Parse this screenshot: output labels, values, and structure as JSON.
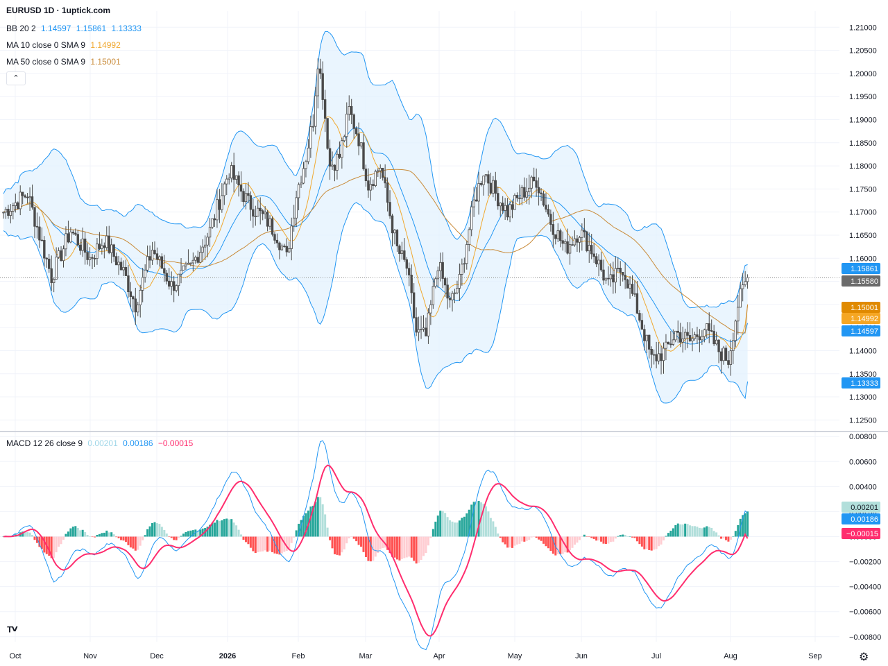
{
  "header": {
    "title": "EURUSD 1D · 1uptick.com"
  },
  "legend": {
    "bb": {
      "label": "BB 20 2",
      "basis": "1.14597",
      "upper": "1.15861",
      "lower": "1.13333"
    },
    "ma10": {
      "label": "MA 10 close 0 SMA 9",
      "value": "1.14992"
    },
    "ma50": {
      "label": "MA 50 close 0 SMA 9",
      "value": "1.15001"
    },
    "macd": {
      "label": "MACD 12 26 close 9",
      "hist": "0.00201",
      "macd": "0.00186",
      "signal": "−0.00015"
    }
  },
  "colors": {
    "up": "#ffffff",
    "down": "#4a4a4a",
    "bb": "#2196f3",
    "bb_fill": "#e3f2fd",
    "ma10": "#f0a830",
    "ma50": "#c98b3a",
    "macd_line": "#2196f3",
    "signal_line": "#ff2d6e",
    "hist_up_strong": "#26a69a",
    "hist_up_weak": "#b2dfdb",
    "hist_down_strong": "#ff5252",
    "hist_down_weak": "#ffcdd2"
  },
  "price_badges": [
    {
      "value": "1.15861",
      "color": "#2196f3"
    },
    {
      "value": "1.15580",
      "color": "#6b6b6b"
    },
    {
      "value": "1.15001",
      "color": "#e08a00"
    },
    {
      "value": "1.14992",
      "color": "#f5a623"
    },
    {
      "value": "1.14597",
      "color": "#2196f3"
    },
    {
      "value": "1.13333",
      "color": "#2196f3"
    }
  ],
  "macd_badges": [
    {
      "value": "0.00201",
      "color": "#b2dfdb",
      "text": "#131722"
    },
    {
      "value": "0.00186",
      "color": "#2196f3",
      "text": "#ffffff"
    },
    {
      "value": "−0.00015",
      "color": "#ff2d6e",
      "text": "#ffffff"
    }
  ],
  "icons": [
    "collapse-chevron-icon",
    "tradingview-logo-icon",
    "gear-icon"
  ],
  "chart_data": {
    "type": "candlestick",
    "symbol": "EURUSD",
    "timeframe": "1D",
    "y_ticks": [
      "1.21000",
      "1.20500",
      "1.20000",
      "1.19500",
      "1.19000",
      "1.18500",
      "1.18000",
      "1.17500",
      "1.17000",
      "1.16500",
      "1.16000",
      "1.15500",
      "1.15000",
      "1.14500",
      "1.14000",
      "1.13500",
      "1.13000",
      "1.12500"
    ],
    "ylim": [
      1.1225,
      1.2135
    ],
    "macd_ticks": [
      "0.00800",
      "0.00600",
      "0.00400",
      "0.00200",
      "0.00000",
      "−0.00200",
      "−0.00400",
      "−0.00600",
      "−0.00800"
    ],
    "macd_ylim": [
      -0.0084,
      0.0084
    ],
    "x_labels": [
      "Oct",
      "Nov",
      "Dec",
      "2026",
      "Feb",
      "Mar",
      "Apr",
      "May",
      "Jun",
      "Jul",
      "Aug",
      "Sep"
    ],
    "x_label_bold": "2026",
    "last_price": 1.1558,
    "bb_last": {
      "upper": 1.15861,
      "basis": 1.14597,
      "lower": 1.13333
    },
    "ma10_last": 1.14992,
    "ma50_last": 1.15001,
    "macd_last": {
      "hist": 0.00201,
      "macd": 0.00186,
      "signal": -0.00015
    },
    "close_waypoints": [
      {
        "d": 0,
        "c": 1.17
      },
      {
        "d": 10,
        "c": 1.174
      },
      {
        "d": 20,
        "c": 1.156
      },
      {
        "d": 28,
        "c": 1.166
      },
      {
        "d": 36,
        "c": 1.16
      },
      {
        "d": 42,
        "c": 1.164
      },
      {
        "d": 50,
        "c": 1.157
      },
      {
        "d": 55,
        "c": 1.15
      },
      {
        "d": 62,
        "c": 1.162
      },
      {
        "d": 70,
        "c": 1.154
      },
      {
        "d": 78,
        "c": 1.158
      },
      {
        "d": 86,
        "c": 1.166
      },
      {
        "d": 94,
        "c": 1.179
      },
      {
        "d": 102,
        "c": 1.172
      },
      {
        "d": 110,
        "c": 1.168
      },
      {
        "d": 114,
        "c": 1.165
      },
      {
        "d": 118,
        "c": 1.16
      },
      {
        "d": 122,
        "c": 1.174
      },
      {
        "d": 126,
        "c": 1.182
      },
      {
        "d": 129,
        "c": 1.19
      },
      {
        "d": 131,
        "c": 1.203
      },
      {
        "d": 133,
        "c": 1.196
      },
      {
        "d": 136,
        "c": 1.18
      },
      {
        "d": 140,
        "c": 1.182
      },
      {
        "d": 144,
        "c": 1.192
      },
      {
        "d": 148,
        "c": 1.186
      },
      {
        "d": 152,
        "c": 1.176
      },
      {
        "d": 157,
        "c": 1.18
      },
      {
        "d": 160,
        "c": 1.172
      },
      {
        "d": 164,
        "c": 1.162
      },
      {
        "d": 168,
        "c": 1.158
      },
      {
        "d": 172,
        "c": 1.144
      },
      {
        "d": 176,
        "c": 1.143
      },
      {
        "d": 181,
        "c": 1.159
      },
      {
        "d": 186,
        "c": 1.15
      },
      {
        "d": 190,
        "c": 1.155
      },
      {
        "d": 196,
        "c": 1.172
      },
      {
        "d": 200,
        "c": 1.179
      },
      {
        "d": 205,
        "c": 1.174
      },
      {
        "d": 210,
        "c": 1.17
      },
      {
        "d": 216,
        "c": 1.174
      },
      {
        "d": 222,
        "c": 1.177
      },
      {
        "d": 228,
        "c": 1.168
      },
      {
        "d": 234,
        "c": 1.162
      },
      {
        "d": 240,
        "c": 1.166
      },
      {
        "d": 246,
        "c": 1.161
      },
      {
        "d": 252,
        "c": 1.154
      },
      {
        "d": 258,
        "c": 1.158
      },
      {
        "d": 264,
        "c": 1.149
      },
      {
        "d": 270,
        "c": 1.138
      },
      {
        "d": 276,
        "c": 1.14
      },
      {
        "d": 280,
        "c": 1.144
      },
      {
        "d": 286,
        "c": 1.142
      },
      {
        "d": 292,
        "c": 1.145
      },
      {
        "d": 298,
        "c": 1.14
      },
      {
        "d": 302,
        "c": 1.138
      },
      {
        "d": 306,
        "c": 1.15
      },
      {
        "d": 310,
        "c": 1.156
      }
    ]
  }
}
